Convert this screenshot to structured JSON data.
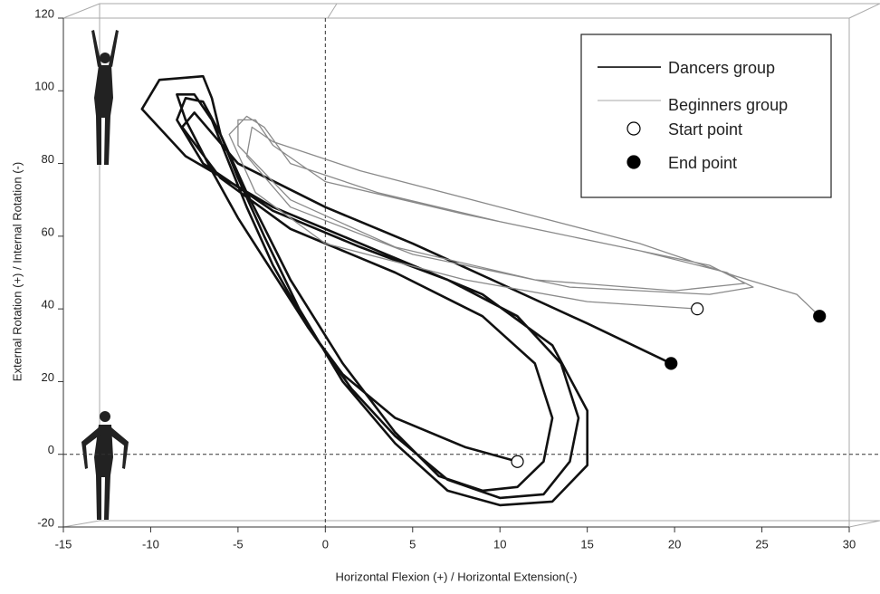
{
  "chart_data": {
    "type": "line",
    "xlabel": "Horizontal Flexion (+) / Horizontal Extension(-)",
    "ylabel": "External Rotation (+) / Internal Rotation (-)",
    "xlim": [
      -15,
      30
    ],
    "xticks": [
      -15,
      -10,
      -5,
      0,
      5,
      10,
      15,
      20,
      25,
      30
    ],
    "ylim": [
      -20,
      120
    ],
    "yticks": [
      -20,
      0,
      20,
      40,
      60,
      80,
      100,
      120
    ],
    "reference_x": 0,
    "reference_y": 0,
    "series": [
      {
        "name": "Dancers group",
        "color": "#111111",
        "width": 2.6,
        "x": [
          11,
          8,
          4,
          1,
          -1,
          -3,
          -5,
          -6.5,
          -8,
          -8.5,
          -7.5,
          -6.5,
          -5.5,
          -4.5,
          -3,
          -1,
          1.5,
          4,
          7,
          10,
          12.5,
          14,
          14.5,
          13.5,
          11,
          7,
          2,
          -3,
          -7,
          -8.5,
          -8,
          -7,
          -6,
          -5,
          -3.5,
          -1.5,
          1,
          4,
          7,
          10,
          13,
          15,
          15,
          13,
          9,
          3,
          -3,
          -8,
          -10.5,
          -9.5,
          -7,
          -6.5,
          -6,
          -4.5,
          -2,
          1,
          4,
          6.5,
          9,
          11,
          12.5,
          13,
          12,
          9,
          4,
          -2,
          -6,
          -8.2,
          -7.5,
          -5,
          0,
          5,
          10,
          15,
          19.8
        ],
        "values": [
          -2,
          2,
          10,
          22,
          35,
          50,
          65,
          78,
          92,
          99,
          99,
          92,
          80,
          68,
          52,
          35,
          18,
          5,
          -7,
          -12,
          -11,
          -2,
          10,
          25,
          38,
          48,
          57,
          67,
          80,
          92,
          98,
          97,
          88,
          76,
          60,
          40,
          20,
          3,
          -10,
          -14,
          -13,
          -3,
          12,
          30,
          44,
          56,
          68,
          82,
          95,
          103,
          104,
          98,
          88,
          72,
          48,
          25,
          6,
          -6,
          -10,
          -9,
          -2,
          10,
          25,
          38,
          50,
          62,
          76,
          90,
          94,
          80,
          68,
          58,
          47,
          36,
          25
        ]
      },
      {
        "name": "Beginners group",
        "color": "#8a8a8a",
        "width": 1.3,
        "x": [
          21.3,
          15,
          8,
          0,
          -4,
          -5.5,
          -4.5,
          -3.5,
          -2,
          3,
          10,
          18,
          23,
          24,
          20,
          12,
          4,
          -2,
          -5,
          -5,
          -4,
          -3,
          0,
          8,
          16,
          22,
          24.5,
          22,
          14,
          5,
          -2,
          -4.5,
          -4.2,
          -3,
          2,
          10,
          18,
          23.5,
          27,
          28.3
        ],
        "values": [
          40,
          42,
          48,
          58,
          72,
          88,
          93,
          90,
          80,
          72,
          64,
          56,
          50,
          47,
          45,
          48,
          57,
          70,
          85,
          92,
          92,
          85,
          75,
          66,
          58,
          52,
          46,
          44,
          46,
          55,
          68,
          82,
          90,
          86,
          78,
          68,
          58,
          49,
          44,
          38
        ]
      },
      {
        "name": "Start point",
        "marker": "open",
        "color": "#000000",
        "x": [
          11,
          21.3
        ],
        "values": [
          -2,
          40
        ]
      },
      {
        "name": "End point",
        "marker": "filled",
        "color": "#000000",
        "x": [
          19.8,
          28.3
        ],
        "values": [
          25,
          38
        ]
      }
    ]
  }
}
